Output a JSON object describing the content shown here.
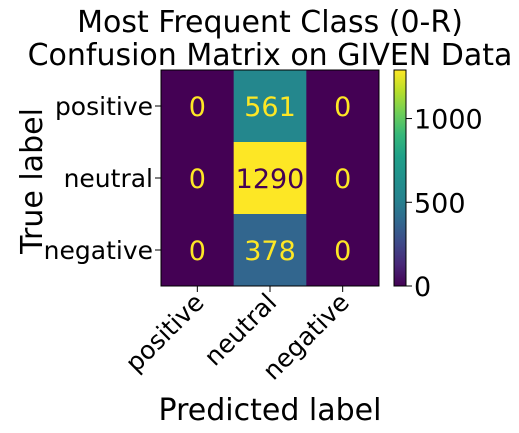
{
  "chart_data": {
    "type": "heatmap",
    "title": [
      "Most Frequent Class (0-R)",
      "Confusion Matrix on GIVEN Data"
    ],
    "xlabel": "Predicted label",
    "ylabel": "True label",
    "x_categories": [
      "positive",
      "neutral",
      "negative"
    ],
    "y_categories": [
      "positive",
      "neutral",
      "negative"
    ],
    "values": [
      [
        0,
        561,
        0
      ],
      [
        0,
        1290,
        0
      ],
      [
        0,
        378,
        0
      ]
    ],
    "colormap": "viridis",
    "color_range": [
      0,
      1290
    ],
    "colorbar_ticks": [
      0,
      500,
      1000
    ],
    "colors": {
      "low": "#440154",
      "high": "#fde725"
    }
  }
}
